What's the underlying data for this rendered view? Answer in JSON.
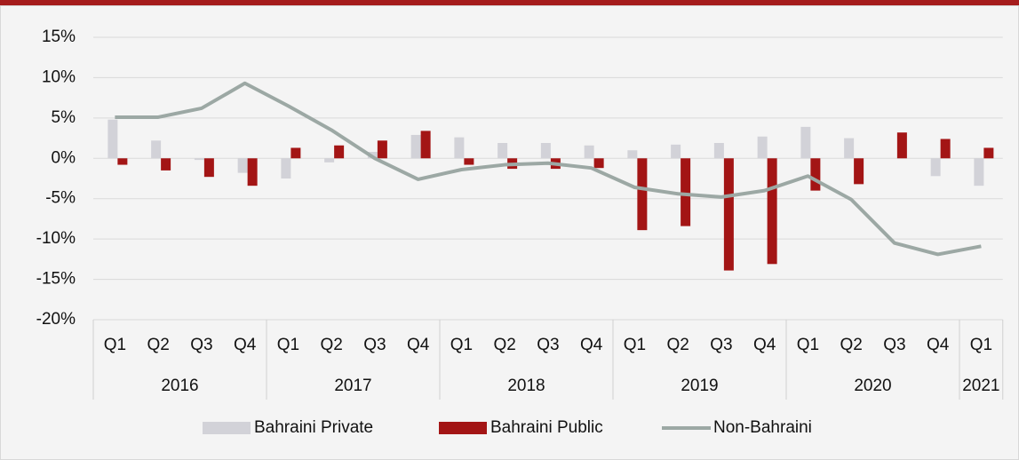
{
  "chart_data": {
    "type": "bar_line",
    "categories": [
      "Q1",
      "Q2",
      "Q3",
      "Q4",
      "Q1",
      "Q2",
      "Q3",
      "Q4",
      "Q1",
      "Q2",
      "Q3",
      "Q4",
      "Q1",
      "Q2",
      "Q3",
      "Q4",
      "Q1",
      "Q2",
      "Q3",
      "Q4",
      "Q1"
    ],
    "category_groups": [
      {
        "label": "2016",
        "span": 4
      },
      {
        "label": "2017",
        "span": 4
      },
      {
        "label": "2018",
        "span": 4
      },
      {
        "label": "2019",
        "span": 4
      },
      {
        "label": "2020",
        "span": 4
      },
      {
        "label": "2021",
        "span": 1
      }
    ],
    "series": [
      {
        "name": "Bahraini Private",
        "type": "bar",
        "color": "#d2d2d8",
        "values": [
          4.8,
          2.2,
          -0.2,
          -1.8,
          -2.5,
          -0.5,
          0.8,
          2.9,
          2.6,
          1.9,
          1.9,
          1.6,
          1.0,
          1.7,
          1.9,
          2.7,
          3.9,
          2.5,
          0.0,
          -2.2,
          -3.4
        ]
      },
      {
        "name": "Bahraini Public",
        "type": "bar",
        "color": "#a31515",
        "values": [
          -0.8,
          -1.5,
          -2.3,
          -3.4,
          1.3,
          1.6,
          2.2,
          3.4,
          -0.8,
          -1.3,
          -1.3,
          -1.2,
          -8.9,
          -8.4,
          -13.9,
          -13.1,
          -4.0,
          -3.2,
          3.2,
          2.4,
          1.3
        ]
      },
      {
        "name": "Non-Bahraini",
        "type": "line",
        "color": "#9ca8a4",
        "values": [
          5.1,
          5.1,
          6.2,
          9.3,
          6.5,
          3.5,
          0.0,
          -2.6,
          -1.4,
          -0.8,
          -0.6,
          -1.2,
          -3.6,
          -4.4,
          -4.8,
          -4.0,
          -2.2,
          -5.1,
          -10.5,
          -11.9,
          -10.9
        ]
      }
    ],
    "ylim": [
      -20,
      15
    ],
    "yticks": [
      {
        "value": -20,
        "label": "-20%"
      },
      {
        "value": -15,
        "label": "-15%"
      },
      {
        "value": -10,
        "label": "-10%"
      },
      {
        "value": -5,
        "label": "-5%"
      },
      {
        "value": 0,
        "label": "0%"
      },
      {
        "value": 5,
        "label": "5%"
      },
      {
        "value": 10,
        "label": "10%"
      },
      {
        "value": 15,
        "label": "15%"
      }
    ],
    "grid": true,
    "legend": "bottom"
  }
}
